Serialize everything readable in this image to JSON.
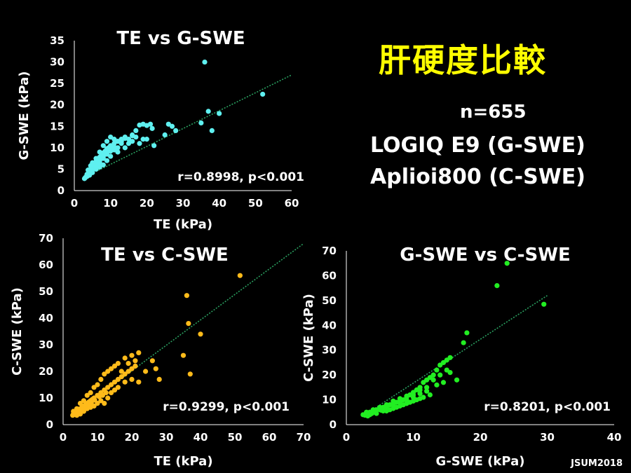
{
  "slide_title": "肝硬度比較",
  "info": {
    "n": "n=655",
    "device1": "LOGIQ E9 (G-SWE)",
    "device2": "Aplioi800 (C-SWE)"
  },
  "credit": "JSUM2018",
  "chart_data": [
    {
      "type": "scatter",
      "title": "TE vs G-SWE",
      "xlabel": "TE (kPa)",
      "ylabel": "G-SWE (kPa)",
      "xlim": [
        0,
        60
      ],
      "ylim": [
        0,
        35
      ],
      "xticks": [
        "0",
        "10",
        "20",
        "30",
        "40",
        "50",
        "60"
      ],
      "yticks": [
        "0",
        "5",
        "10",
        "15",
        "20",
        "25",
        "30",
        "35"
      ],
      "color": "#5ff0f0",
      "annotation": "r=0.8998, p<0.001",
      "trendline": [
        [
          2.5,
          3.0
        ],
        [
          60,
          27.0
        ]
      ],
      "points": [
        [
          3,
          3
        ],
        [
          3.5,
          3.8
        ],
        [
          4,
          4.5
        ],
        [
          4.5,
          5
        ],
        [
          5,
          5.5
        ],
        [
          5.5,
          6
        ],
        [
          6,
          6.8
        ],
        [
          6.5,
          7.2
        ],
        [
          7,
          7.8
        ],
        [
          7.5,
          8.3
        ],
        [
          8,
          8.8
        ],
        [
          8.5,
          9.2
        ],
        [
          9,
          9.8
        ],
        [
          9.5,
          10
        ],
        [
          10,
          10.5
        ],
        [
          11,
          11
        ],
        [
          12,
          11.5
        ],
        [
          13,
          12
        ],
        [
          14,
          12.5
        ],
        [
          15,
          12
        ],
        [
          16,
          13
        ],
        [
          17,
          14
        ],
        [
          18,
          15.3
        ],
        [
          19,
          15.5
        ],
        [
          20,
          15.2
        ],
        [
          21,
          15.5
        ],
        [
          21.5,
          14.5
        ],
        [
          22,
          10.5
        ],
        [
          20,
          12
        ],
        [
          18,
          11
        ],
        [
          16,
          11.5
        ],
        [
          14,
          10
        ],
        [
          12,
          9
        ],
        [
          10,
          8
        ],
        [
          9,
          7
        ],
        [
          8,
          6
        ],
        [
          7,
          5.5
        ],
        [
          6,
          5
        ],
        [
          5,
          4.2
        ],
        [
          4,
          3.8
        ],
        [
          3.2,
          3.2
        ],
        [
          2.8,
          2.8
        ],
        [
          3.5,
          3.3
        ],
        [
          4.2,
          3.6
        ],
        [
          6,
          6
        ],
        [
          7,
          7
        ],
        [
          8,
          7.5
        ],
        [
          9,
          8.5
        ],
        [
          10,
          9.2
        ],
        [
          11,
          9.5
        ],
        [
          12,
          10
        ],
        [
          13,
          11
        ],
        [
          15,
          11
        ],
        [
          17,
          12.5
        ],
        [
          19,
          12
        ],
        [
          25,
          13
        ],
        [
          26,
          15.5
        ],
        [
          27,
          15
        ],
        [
          28,
          14
        ],
        [
          35,
          15.8
        ],
        [
          36,
          30
        ],
        [
          37,
          18.5
        ],
        [
          38,
          14
        ],
        [
          40,
          18
        ],
        [
          52,
          22.5
        ],
        [
          4,
          4
        ],
        [
          5,
          5
        ],
        [
          6,
          5.5
        ],
        [
          7,
          6.5
        ],
        [
          8,
          8
        ],
        [
          9,
          9
        ],
        [
          10,
          10
        ],
        [
          11,
          10.2
        ],
        [
          13,
          11.5
        ],
        [
          14,
          12.2
        ],
        [
          16,
          12.8
        ],
        [
          12,
          11.5
        ],
        [
          11,
          12
        ],
        [
          10,
          12.5
        ],
        [
          9,
          11.5
        ],
        [
          8,
          10.5
        ],
        [
          7,
          9
        ],
        [
          6,
          7.5
        ],
        [
          5,
          6.5
        ],
        [
          4.5,
          5.8
        ],
        [
          3.8,
          4.8
        ]
      ]
    },
    {
      "type": "scatter",
      "title": "TE vs C-SWE",
      "xlabel": "TE (kPa)",
      "ylabel": "C-SWE (kPa)",
      "xlim": [
        0,
        70
      ],
      "ylim": [
        0,
        70
      ],
      "xticks": [
        "0",
        "10",
        "20",
        "30",
        "40",
        "50",
        "60",
        "70"
      ],
      "yticks": [
        "0",
        "10",
        "20",
        "30",
        "40",
        "50",
        "60",
        "70"
      ],
      "color": "#ffbb1a",
      "annotation": "r=0.9299, p<0.001",
      "trendline": [
        [
          2.5,
          3.5
        ],
        [
          70,
          68.0
        ]
      ],
      "points": [
        [
          3,
          4
        ],
        [
          3.5,
          4.5
        ],
        [
          4,
          5
        ],
        [
          4.5,
          5.5
        ],
        [
          5,
          6
        ],
        [
          5.5,
          6.5
        ],
        [
          6,
          7
        ],
        [
          6.5,
          7.5
        ],
        [
          7,
          8
        ],
        [
          7.5,
          8.5
        ],
        [
          8,
          9
        ],
        [
          8.5,
          9.5
        ],
        [
          9,
          10
        ],
        [
          10,
          11
        ],
        [
          11,
          12
        ],
        [
          12,
          13
        ],
        [
          13,
          14
        ],
        [
          14,
          15
        ],
        [
          15,
          16
        ],
        [
          16,
          17
        ],
        [
          17,
          18
        ],
        [
          18,
          19
        ],
        [
          19,
          20
        ],
        [
          20,
          21
        ],
        [
          21,
          22
        ],
        [
          22,
          27
        ],
        [
          20,
          26
        ],
        [
          18,
          25
        ],
        [
          16,
          23
        ],
        [
          15,
          22
        ],
        [
          14,
          21
        ],
        [
          13,
          20
        ],
        [
          12,
          19
        ],
        [
          11,
          17
        ],
        [
          10,
          15
        ],
        [
          9,
          14
        ],
        [
          8,
          12
        ],
        [
          7,
          11
        ],
        [
          6,
          9
        ],
        [
          5,
          8
        ],
        [
          4,
          6
        ],
        [
          3,
          5
        ],
        [
          4,
          3.5
        ],
        [
          5,
          4
        ],
        [
          6,
          5
        ],
        [
          7,
          6
        ],
        [
          8,
          6.5
        ],
        [
          9,
          7
        ],
        [
          10,
          8
        ],
        [
          11,
          9
        ],
        [
          12,
          8
        ],
        [
          13,
          10
        ],
        [
          14,
          12
        ],
        [
          15,
          13
        ],
        [
          16,
          14
        ],
        [
          18,
          16
        ],
        [
          20,
          17
        ],
        [
          26,
          24
        ],
        [
          27,
          21
        ],
        [
          28,
          17
        ],
        [
          35,
          26
        ],
        [
          36,
          48.5
        ],
        [
          36.5,
          38
        ],
        [
          37,
          19
        ],
        [
          40,
          34
        ],
        [
          51.5,
          56
        ],
        [
          2.8,
          3.5
        ],
        [
          3.2,
          3.8
        ],
        [
          3.8,
          4.2
        ],
        [
          4.2,
          4.8
        ],
        [
          5.2,
          5.2
        ],
        [
          6.2,
          6.2
        ],
        [
          7.2,
          7.2
        ],
        [
          8.2,
          8.2
        ],
        [
          9.2,
          9.2
        ],
        [
          10.5,
          10.5
        ],
        [
          11.5,
          11
        ],
        [
          12.5,
          12
        ],
        [
          17,
          20
        ],
        [
          19,
          23
        ],
        [
          21,
          24
        ],
        [
          22,
          16
        ],
        [
          24,
          20
        ]
      ]
    },
    {
      "type": "scatter",
      "title": "G-SWE vs C-SWE",
      "xlabel": "G-SWE (kPa)",
      "ylabel": "C-SWE (kPa)",
      "xlim": [
        0,
        40
      ],
      "ylim": [
        0,
        70
      ],
      "xticks": [
        "0",
        "10",
        "20",
        "30",
        "40"
      ],
      "yticks": [
        "0",
        "10",
        "20",
        "30",
        "40",
        "50",
        "60",
        "70"
      ],
      "color": "#22ee22",
      "annotation": "r=0.8201, p<0.001",
      "trendline": [
        [
          2.5,
          3.5
        ],
        [
          30,
          52.0
        ]
      ],
      "points": [
        [
          2.5,
          4
        ],
        [
          3,
          4.5
        ],
        [
          3.5,
          5
        ],
        [
          4,
          5.5
        ],
        [
          4.5,
          6
        ],
        [
          5,
          6.5
        ],
        [
          5.5,
          7
        ],
        [
          6,
          7.5
        ],
        [
          6.5,
          8
        ],
        [
          7,
          8.5
        ],
        [
          7.5,
          9
        ],
        [
          8,
          9.5
        ],
        [
          8.5,
          10
        ],
        [
          9,
          11
        ],
        [
          9.5,
          12
        ],
        [
          10,
          13
        ],
        [
          10.5,
          14
        ],
        [
          11,
          15
        ],
        [
          11.5,
          17
        ],
        [
          12,
          18
        ],
        [
          12.5,
          19
        ],
        [
          13,
          20
        ],
        [
          13.5,
          22
        ],
        [
          14,
          24
        ],
        [
          14.5,
          25
        ],
        [
          15,
          26
        ],
        [
          15.5,
          27
        ],
        [
          15,
          22
        ],
        [
          14,
          20
        ],
        [
          13,
          18
        ],
        [
          12,
          15
        ],
        [
          11,
          14
        ],
        [
          10,
          12
        ],
        [
          9,
          10
        ],
        [
          8,
          9
        ],
        [
          7,
          8
        ],
        [
          6,
          7
        ],
        [
          5,
          6
        ],
        [
          4,
          5
        ],
        [
          3,
          4.2
        ],
        [
          2.8,
          3.8
        ],
        [
          3.5,
          4
        ],
        [
          4.5,
          4.5
        ],
        [
          5.5,
          5.5
        ],
        [
          6.5,
          6
        ],
        [
          7.5,
          7
        ],
        [
          8.5,
          8
        ],
        [
          9.5,
          9
        ],
        [
          10.5,
          10
        ],
        [
          11.5,
          11
        ],
        [
          12.5,
          12
        ],
        [
          13.5,
          16
        ],
        [
          14.5,
          17
        ],
        [
          15.5,
          21
        ],
        [
          16.5,
          18
        ],
        [
          17.5,
          33
        ],
        [
          18,
          37
        ],
        [
          22.5,
          56
        ],
        [
          24,
          65
        ],
        [
          29.5,
          48.5
        ],
        [
          3,
          5
        ],
        [
          4,
          6
        ],
        [
          5,
          7
        ],
        [
          6,
          8
        ],
        [
          7,
          9.5
        ],
        [
          8,
          10.5
        ],
        [
          9,
          11.5
        ],
        [
          10,
          11
        ],
        [
          11,
          12.5
        ],
        [
          12,
          13.5
        ],
        [
          6,
          5.5
        ],
        [
          7,
          6.5
        ],
        [
          8,
          7.5
        ],
        [
          3.2,
          3.5
        ],
        [
          3.8,
          4.5
        ],
        [
          4.2,
          5.2
        ],
        [
          5.2,
          5.8
        ],
        [
          9,
          8.5
        ],
        [
          10,
          9.5
        ],
        [
          11,
          10.5
        ]
      ]
    }
  ]
}
